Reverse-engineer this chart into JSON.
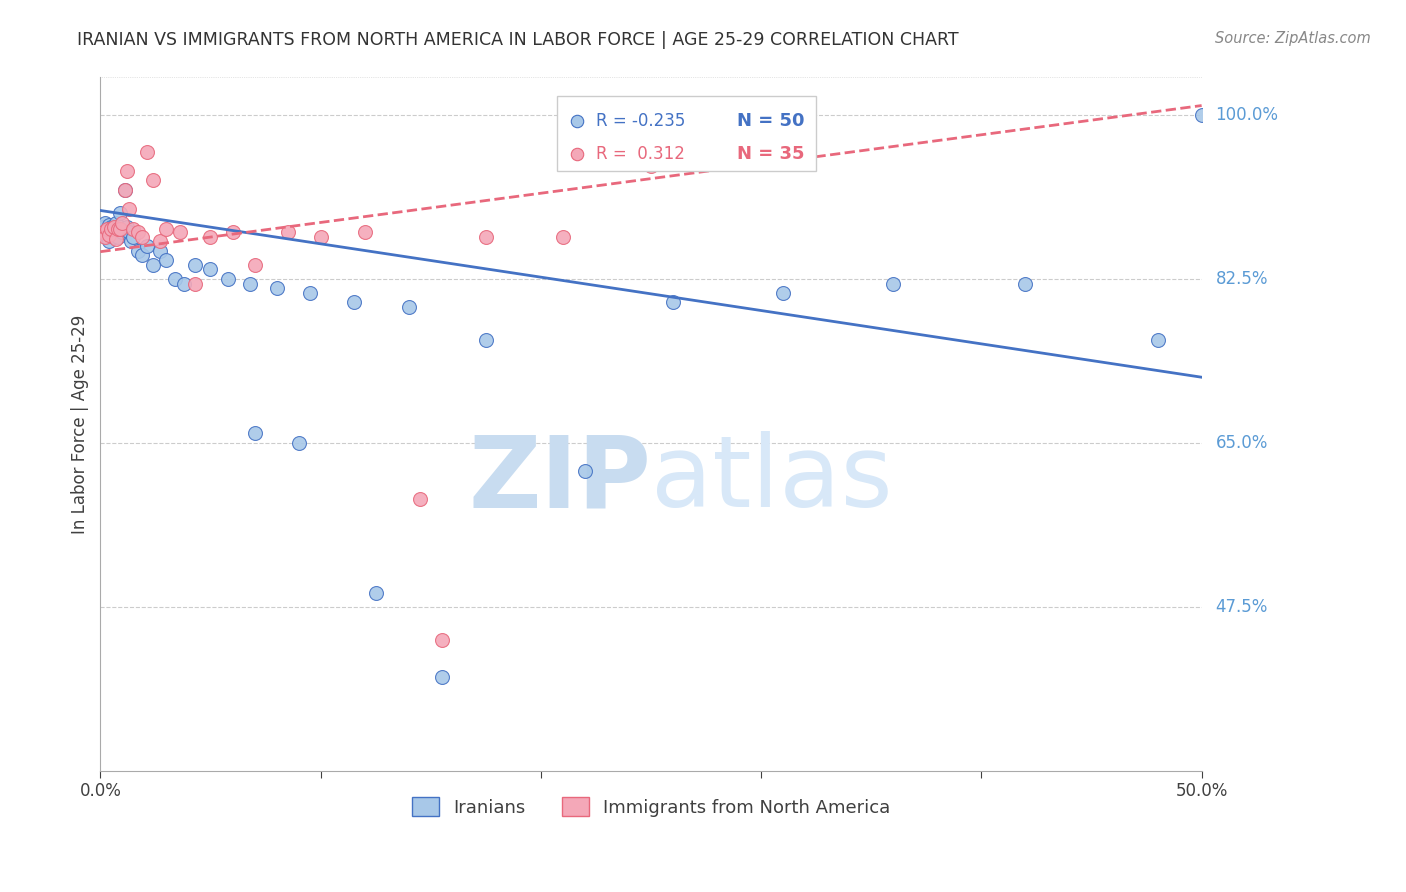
{
  "title": "IRANIAN VS IMMIGRANTS FROM NORTH AMERICA IN LABOR FORCE | AGE 25-29 CORRELATION CHART",
  "source": "Source: ZipAtlas.com",
  "ylabel": "In Labor Force | Age 25-29",
  "y_tick_labels": [
    "100.0%",
    "82.5%",
    "65.0%",
    "47.5%"
  ],
  "y_tick_values": [
    1.0,
    0.825,
    0.65,
    0.475
  ],
  "xlim": [
    0.0,
    0.5
  ],
  "ylim": [
    0.3,
    1.04
  ],
  "legend_r1": "R = -0.235",
  "legend_n1": "N = 50",
  "legend_r2": "R =  0.312",
  "legend_n2": "N = 35",
  "color_blue": "#A8C8E8",
  "color_pink": "#F4A8B8",
  "color_blue_line": "#4472C4",
  "color_pink_line": "#E8687C",
  "color_ytick": "#5B9BD5",
  "color_title": "#333333",
  "color_source": "#888888",
  "background_color": "#FFFFFF",
  "grid_color": "#CCCCCC",
  "watermark_zip": "ZIP",
  "watermark_atlas": "atlas",
  "watermark_color": "#D0E4F4",
  "marker_size": 100,
  "blue_points_x": [
    0.001,
    0.002,
    0.002,
    0.003,
    0.003,
    0.004,
    0.004,
    0.005,
    0.005,
    0.006,
    0.006,
    0.007,
    0.007,
    0.008,
    0.008,
    0.009,
    0.01,
    0.011,
    0.012,
    0.013,
    0.014,
    0.015,
    0.017,
    0.019,
    0.021,
    0.024,
    0.027,
    0.03,
    0.034,
    0.038,
    0.043,
    0.05,
    0.058,
    0.068,
    0.08,
    0.095,
    0.115,
    0.14,
    0.175,
    0.22,
    0.26,
    0.31,
    0.36,
    0.42,
    0.48,
    0.5,
    0.125,
    0.155,
    0.07,
    0.09
  ],
  "blue_points_y": [
    0.88,
    0.875,
    0.885,
    0.87,
    0.878,
    0.882,
    0.865,
    0.88,
    0.875,
    0.878,
    0.87,
    0.885,
    0.878,
    0.875,
    0.87,
    0.895,
    0.875,
    0.92,
    0.88,
    0.875,
    0.865,
    0.87,
    0.855,
    0.85,
    0.86,
    0.84,
    0.855,
    0.845,
    0.825,
    0.82,
    0.84,
    0.835,
    0.825,
    0.82,
    0.815,
    0.81,
    0.8,
    0.795,
    0.76,
    0.62,
    0.8,
    0.81,
    0.82,
    0.82,
    0.76,
    1.0,
    0.49,
    0.4,
    0.66,
    0.65
  ],
  "pink_points_x": [
    0.001,
    0.002,
    0.003,
    0.004,
    0.005,
    0.006,
    0.007,
    0.008,
    0.009,
    0.01,
    0.011,
    0.012,
    0.013,
    0.015,
    0.017,
    0.019,
    0.021,
    0.024,
    0.027,
    0.03,
    0.036,
    0.043,
    0.05,
    0.06,
    0.07,
    0.085,
    0.1,
    0.12,
    0.145,
    0.175,
    0.21,
    0.25,
    0.3,
    0.26,
    0.155
  ],
  "pink_points_y": [
    0.875,
    0.87,
    0.878,
    0.872,
    0.878,
    0.88,
    0.868,
    0.878,
    0.878,
    0.885,
    0.92,
    0.94,
    0.9,
    0.878,
    0.875,
    0.87,
    0.96,
    0.93,
    0.865,
    0.878,
    0.875,
    0.82,
    0.87,
    0.875,
    0.84,
    0.875,
    0.87,
    0.875,
    0.59,
    0.87,
    0.87,
    0.945,
    0.99,
    0.96,
    0.44
  ],
  "blue_line_x": [
    0.0,
    0.5
  ],
  "blue_line_y": [
    0.898,
    0.72
  ],
  "pink_line_x": [
    0.0,
    0.5
  ],
  "pink_line_y": [
    0.854,
    1.01
  ]
}
